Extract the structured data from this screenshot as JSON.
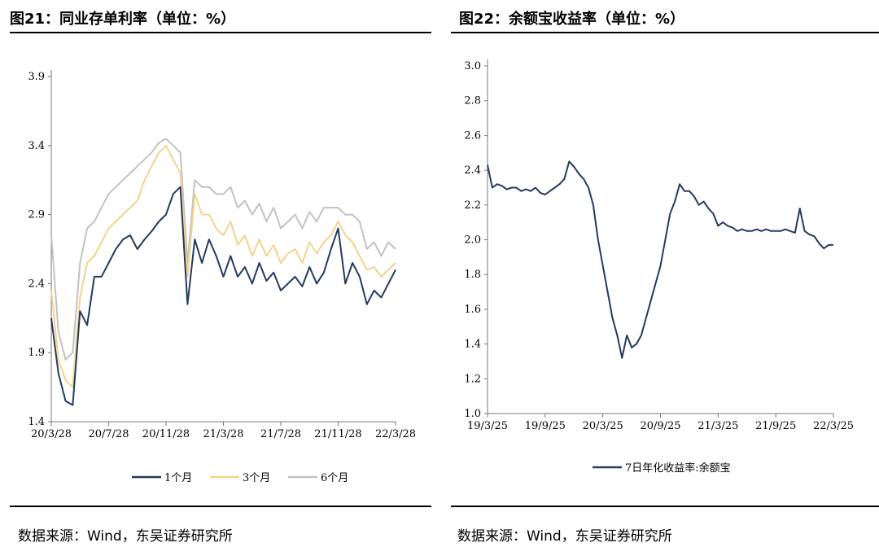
{
  "left": {
    "title": "图21：同业存单利率（单位：%）",
    "source": "数据来源：Wind，东吴证券研究所"
  },
  "right": {
    "title": "图22：余额宝收益率（单位：%）",
    "source": "数据来源：Wind，东吴证券研究所"
  },
  "colors": {
    "1m": "#243a5e",
    "3m": "#f4d38c",
    "6m": "#c2c2c2",
    "yeb": "#243a5e"
  },
  "chart_data": [
    {
      "type": "line",
      "title": "图21：同业存单利率（单位：%）",
      "xlabel": "",
      "ylabel": "",
      "ylim": [
        1.4,
        3.9
      ],
      "yticks": [
        "1.4",
        "1.9",
        "2.4",
        "2.9",
        "3.4",
        "3.9"
      ],
      "xticks": [
        "20/3/28",
        "20/7/28",
        "20/11/28",
        "21/3/28",
        "21/7/28",
        "21/11/28",
        "22/3/28"
      ],
      "grid": false,
      "legend": "bottom",
      "x": [
        "20/3/28",
        "20/4/10",
        "20/4/28",
        "20/5/15",
        "20/5/28",
        "20/6/15",
        "20/6/28",
        "20/7/15",
        "20/7/28",
        "20/8/15",
        "20/8/28",
        "20/9/15",
        "20/9/28",
        "20/10/15",
        "20/10/28",
        "20/11/15",
        "20/11/28",
        "20/12/15",
        "20/12/28",
        "21/1/15",
        "21/1/28",
        "21/2/15",
        "21/2/28",
        "21/3/15",
        "21/3/28",
        "21/4/15",
        "21/4/28",
        "21/5/15",
        "21/5/28",
        "21/6/15",
        "21/6/28",
        "21/7/15",
        "21/7/28",
        "21/8/15",
        "21/8/28",
        "21/9/15",
        "21/9/28",
        "21/10/15",
        "21/10/28",
        "21/11/15",
        "21/11/28",
        "21/12/15",
        "21/12/28",
        "22/1/15",
        "22/1/28",
        "22/2/15",
        "22/2/28",
        "22/3/15",
        "22/3/28"
      ],
      "series": [
        {
          "name": "1个月",
          "values": [
            2.15,
            1.75,
            1.55,
            1.52,
            2.2,
            2.1,
            2.45,
            2.45,
            2.55,
            2.65,
            2.72,
            2.75,
            2.65,
            2.72,
            2.78,
            2.85,
            2.9,
            3.05,
            3.1,
            2.25,
            2.72,
            2.55,
            2.72,
            2.6,
            2.45,
            2.6,
            2.45,
            2.52,
            2.4,
            2.55,
            2.42,
            2.48,
            2.35,
            2.4,
            2.45,
            2.38,
            2.52,
            2.4,
            2.48,
            2.65,
            2.8,
            2.4,
            2.55,
            2.45,
            2.25,
            2.35,
            2.3,
            2.4,
            2.5
          ]
        },
        {
          "name": "3个月",
          "values": [
            2.35,
            1.85,
            1.7,
            1.65,
            2.3,
            2.55,
            2.6,
            2.7,
            2.8,
            2.85,
            2.9,
            2.95,
            3.0,
            3.15,
            3.25,
            3.35,
            3.4,
            3.3,
            3.2,
            2.45,
            3.05,
            2.9,
            2.9,
            2.8,
            2.75,
            2.85,
            2.68,
            2.75,
            2.6,
            2.72,
            2.6,
            2.68,
            2.55,
            2.62,
            2.65,
            2.55,
            2.7,
            2.62,
            2.7,
            2.75,
            2.85,
            2.75,
            2.7,
            2.6,
            2.5,
            2.52,
            2.45,
            2.5,
            2.55
          ]
        },
        {
          "name": "6个月",
          "values": [
            2.75,
            2.05,
            1.85,
            1.9,
            2.55,
            2.8,
            2.85,
            2.95,
            3.05,
            3.1,
            3.15,
            3.2,
            3.25,
            3.3,
            3.35,
            3.42,
            3.45,
            3.4,
            3.35,
            2.55,
            3.15,
            3.1,
            3.1,
            3.05,
            3.05,
            3.1,
            2.95,
            3.0,
            2.9,
            2.98,
            2.85,
            2.95,
            2.8,
            2.85,
            2.9,
            2.8,
            2.92,
            2.85,
            2.95,
            2.95,
            2.95,
            2.9,
            2.9,
            2.85,
            2.65,
            2.7,
            2.6,
            2.7,
            2.65
          ]
        }
      ]
    },
    {
      "type": "line",
      "title": "图22：余额宝收益率（单位：%）",
      "xlabel": "",
      "ylabel": "",
      "ylim": [
        1.0,
        3.0
      ],
      "yticks": [
        "1.0",
        "1.2",
        "1.4",
        "1.6",
        "1.8",
        "2.0",
        "2.2",
        "2.4",
        "2.6",
        "2.8",
        "3.0"
      ],
      "xticks": [
        "19/3/25",
        "19/9/25",
        "20/3/25",
        "20/9/25",
        "21/3/25",
        "21/9/25",
        "22/3/25"
      ],
      "grid": false,
      "legend": "bottom",
      "x": [
        "19/3/25",
        "19/4/10",
        "19/4/25",
        "19/5/10",
        "19/5/25",
        "19/6/10",
        "19/6/25",
        "19/7/10",
        "19/7/25",
        "19/8/10",
        "19/8/25",
        "19/9/10",
        "19/9/25",
        "19/10/10",
        "19/10/25",
        "19/11/10",
        "19/11/25",
        "19/12/10",
        "19/12/25",
        "20/1/10",
        "20/1/25",
        "20/2/10",
        "20/2/25",
        "20/3/10",
        "20/3/25",
        "20/4/10",
        "20/4/25",
        "20/5/10",
        "20/5/25",
        "20/6/10",
        "20/6/25",
        "20/7/10",
        "20/7/25",
        "20/8/10",
        "20/8/25",
        "20/9/10",
        "20/9/25",
        "20/10/10",
        "20/10/25",
        "20/11/10",
        "20/11/25",
        "20/12/10",
        "20/12/25",
        "21/1/10",
        "21/1/25",
        "21/2/10",
        "21/2/25",
        "21/3/10",
        "21/3/25",
        "21/4/10",
        "21/4/25",
        "21/5/10",
        "21/5/25",
        "21/6/10",
        "21/6/25",
        "21/7/10",
        "21/7/25",
        "21/8/10",
        "21/8/25",
        "21/9/10",
        "21/9/25",
        "21/10/10",
        "21/10/25",
        "21/11/10",
        "21/11/25",
        "21/12/10",
        "21/12/25",
        "22/1/10",
        "22/1/25",
        "22/2/10",
        "22/2/25",
        "22/3/10",
        "22/3/25"
      ],
      "series": [
        {
          "name": "7日年化收益率:余额宝",
          "values": [
            2.43,
            2.3,
            2.32,
            2.31,
            2.29,
            2.3,
            2.3,
            2.28,
            2.29,
            2.28,
            2.3,
            2.27,
            2.26,
            2.28,
            2.3,
            2.32,
            2.35,
            2.45,
            2.42,
            2.38,
            2.35,
            2.3,
            2.2,
            2.0,
            1.85,
            1.7,
            1.55,
            1.45,
            1.32,
            1.45,
            1.38,
            1.4,
            1.45,
            1.55,
            1.65,
            1.75,
            1.85,
            2.0,
            2.15,
            2.22,
            2.32,
            2.28,
            2.28,
            2.25,
            2.2,
            2.22,
            2.18,
            2.15,
            2.08,
            2.1,
            2.08,
            2.07,
            2.05,
            2.06,
            2.05,
            2.05,
            2.06,
            2.05,
            2.06,
            2.05,
            2.05,
            2.05,
            2.06,
            2.05,
            2.04,
            2.18,
            2.05,
            2.03,
            2.02,
            1.98,
            1.95,
            1.97,
            1.97
          ]
        }
      ]
    }
  ]
}
